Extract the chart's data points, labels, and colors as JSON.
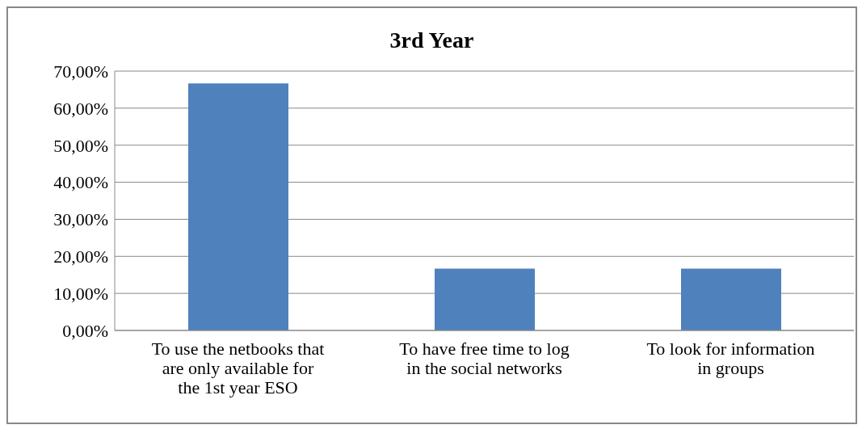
{
  "chart_data": {
    "type": "bar",
    "title": "3rd Year",
    "categories": [
      "To use the netbooks that are only available for the 1st year ESO",
      "To have free time to log in the social networks",
      "To look for information in groups"
    ],
    "values": [
      66.67,
      16.67,
      16.67
    ],
    "color": "#4f81bd",
    "ylim": [
      0,
      70
    ],
    "yticks": [
      {
        "value": 0,
        "label": "0,00%"
      },
      {
        "value": 10,
        "label": "10,00%"
      },
      {
        "value": 20,
        "label": "20,00%"
      },
      {
        "value": 30,
        "label": "30,00%"
      },
      {
        "value": 40,
        "label": "40,00%"
      },
      {
        "value": 50,
        "label": "50,00%"
      },
      {
        "value": 60,
        "label": "60,00%"
      },
      {
        "value": 70,
        "label": "70,00%"
      }
    ],
    "grid": "y",
    "legend": false
  }
}
